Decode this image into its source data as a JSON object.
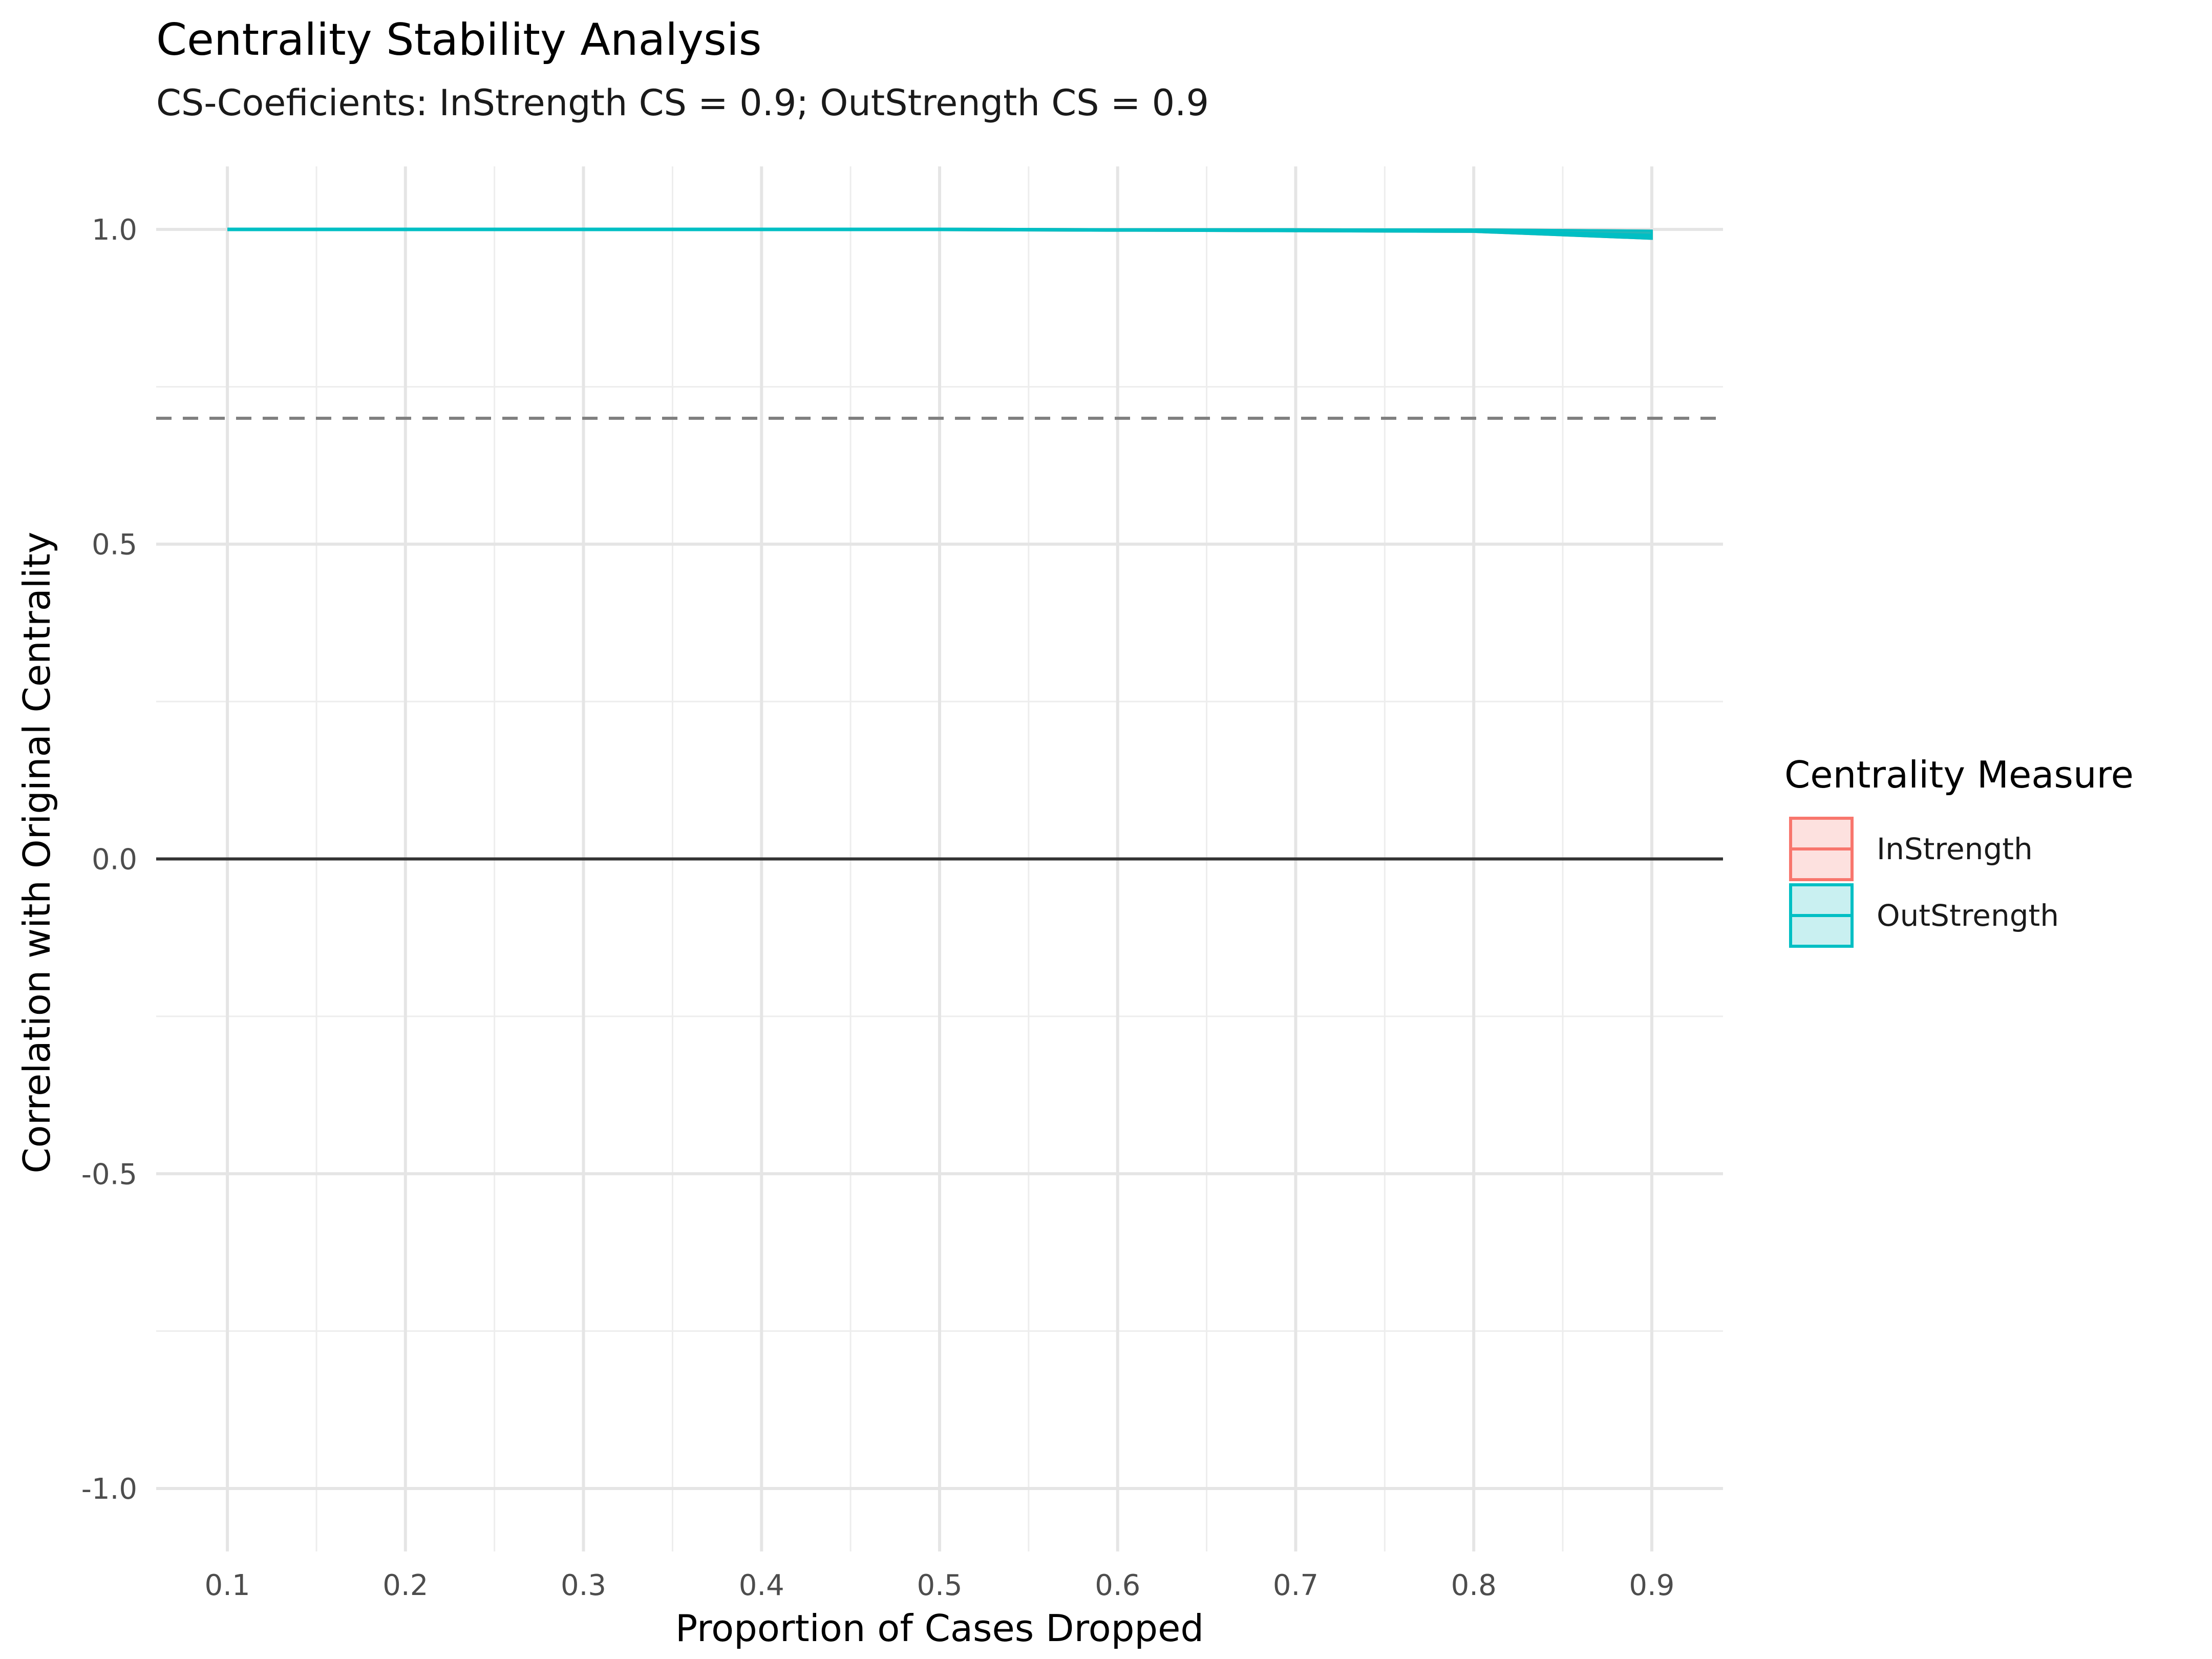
{
  "chart_data": {
    "type": "area",
    "title": "Centrality Stability Analysis",
    "subtitle": "CS-Coeficients: InStrength CS = 0.9; OutStrength CS = 0.9",
    "xlabel": "Proportion of Cases Dropped",
    "ylabel": "Correlation with Original Centrality",
    "x": [
      0.1,
      0.2,
      0.3,
      0.4,
      0.5,
      0.6,
      0.7,
      0.8,
      0.9
    ],
    "x_tick_labels": [
      "0.1",
      "0.2",
      "0.3",
      "0.4",
      "0.5",
      "0.6",
      "0.7",
      "0.8",
      "0.9"
    ],
    "y_ticks": [
      1.0,
      0.5,
      0.0,
      -0.5,
      -1.0
    ],
    "y_tick_labels": [
      "1.0",
      "0.5",
      "0.0",
      "-0.5",
      "-1.0"
    ],
    "xlim": [
      0.06,
      0.94
    ],
    "ylim": [
      -1.1,
      1.1
    ],
    "grid": true,
    "reference_lines": [
      {
        "y": 0.7,
        "style": "dashed",
        "color": "#7f7f7f"
      },
      {
        "y": 0.0,
        "style": "solid",
        "color": "#333333"
      }
    ],
    "legend": {
      "title": "Centrality Measure",
      "position": "right",
      "entries": [
        "InStrength",
        "OutStrength"
      ]
    },
    "series": [
      {
        "name": "InStrength",
        "color": "#F8766D",
        "fill": "#FDE1DF",
        "values": [
          1.0,
          1.0,
          1.0,
          1.0,
          1.0,
          0.999,
          0.999,
          0.998,
          0.99
        ],
        "lower": [
          1.0,
          1.0,
          1.0,
          0.999,
          0.999,
          0.998,
          0.997,
          0.996,
          0.985
        ],
        "upper": [
          1.0,
          1.0,
          1.0,
          1.0,
          1.0,
          1.0,
          1.0,
          1.0,
          0.998
        ]
      },
      {
        "name": "OutStrength",
        "color": "#00BFC4",
        "fill": "#C9F0F1",
        "values": [
          1.0,
          1.0,
          1.0,
          1.0,
          1.0,
          0.999,
          0.999,
          0.998,
          0.99
        ],
        "lower": [
          1.0,
          1.0,
          1.0,
          0.999,
          0.999,
          0.998,
          0.997,
          0.996,
          0.985
        ],
        "upper": [
          1.0,
          1.0,
          1.0,
          1.0,
          1.0,
          1.0,
          1.0,
          1.0,
          0.998
        ]
      }
    ]
  }
}
